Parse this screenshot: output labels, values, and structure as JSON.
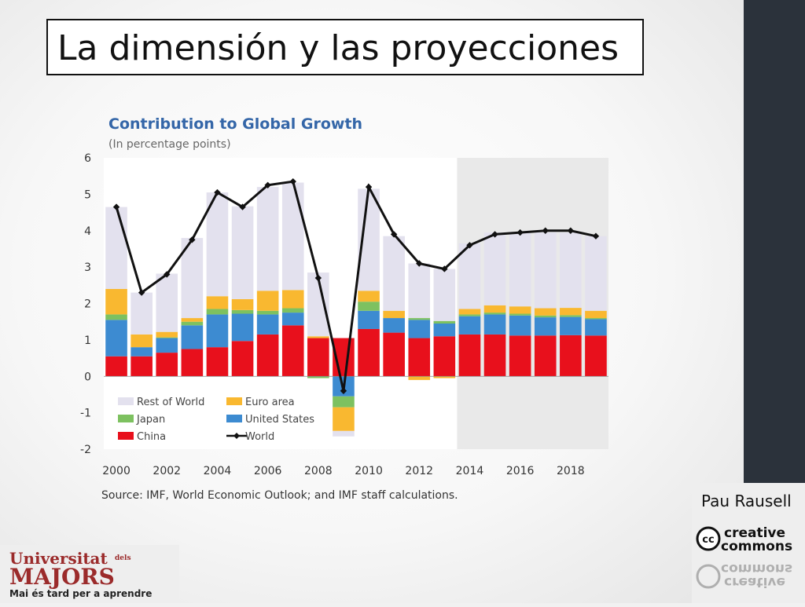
{
  "slide": {
    "title": "La dimensión y las proyecciones",
    "author": "Pau Rausell",
    "cc_logo_text": [
      "creative",
      "commons"
    ],
    "university_logo": {
      "line1": "Universitat",
      "line1_small": "dels",
      "line2": "MAJORS",
      "tagline": "Mai és tard per a aprendre"
    },
    "colors": {
      "right_band": "#2b323b",
      "brand_red": "#9b2b2b",
      "title_border": "#111111"
    }
  },
  "chart_data": {
    "type": "bar",
    "stacked": true,
    "title": "Contribution to Global Growth",
    "subtitle": "(In percentage points)",
    "source": "Source: IMF, World Economic Outlook; and IMF staff calculations.",
    "x": [
      2000,
      2001,
      2002,
      2003,
      2004,
      2005,
      2006,
      2007,
      2008,
      2009,
      2010,
      2011,
      2012,
      2013,
      2014,
      2015,
      2016,
      2017,
      2018,
      2019
    ],
    "xticks": [
      2000,
      2002,
      2004,
      2006,
      2008,
      2010,
      2012,
      2014,
      2016,
      2018
    ],
    "ylim": [
      -2,
      6
    ],
    "yticks": [
      -2,
      -1,
      0,
      1,
      2,
      3,
      4,
      5,
      6
    ],
    "projection_start": 2014,
    "legend": "bottom-left",
    "series": [
      {
        "name": "China",
        "color": "#e8101c",
        "values": [
          0.55,
          0.55,
          0.65,
          0.75,
          0.8,
          0.97,
          1.15,
          1.4,
          1.05,
          1.05,
          1.3,
          1.2,
          1.05,
          1.1,
          1.15,
          1.15,
          1.12,
          1.12,
          1.13,
          1.12
        ]
      },
      {
        "name": "United States",
        "color": "#3d8bd1",
        "values": [
          1.0,
          0.25,
          0.4,
          0.65,
          0.9,
          0.75,
          0.55,
          0.35,
          0.0,
          -0.55,
          0.5,
          0.4,
          0.5,
          0.35,
          0.5,
          0.55,
          0.55,
          0.5,
          0.5,
          0.45
        ]
      },
      {
        "name": "Japan",
        "color": "#7dc160",
        "values": [
          0.15,
          0.0,
          0.02,
          0.1,
          0.15,
          0.1,
          0.1,
          0.12,
          -0.05,
          -0.3,
          0.25,
          0.0,
          0.05,
          0.07,
          0.05,
          0.05,
          0.05,
          0.05,
          0.05,
          0.03
        ]
      },
      {
        "name": "Euro area",
        "color": "#f9b830",
        "values": [
          0.7,
          0.35,
          0.15,
          0.1,
          0.35,
          0.3,
          0.55,
          0.5,
          0.05,
          -0.65,
          0.3,
          0.2,
          -0.1,
          -0.05,
          0.15,
          0.2,
          0.2,
          0.2,
          0.2,
          0.2
        ]
      },
      {
        "name": "Rest of World",
        "color": "#e3e1ee",
        "values": [
          2.25,
          1.15,
          1.6,
          2.2,
          2.85,
          2.55,
          2.85,
          2.95,
          1.75,
          -0.15,
          2.8,
          2.05,
          1.5,
          1.43,
          1.8,
          2.0,
          2.05,
          2.08,
          2.07,
          2.05
        ]
      },
      {
        "name": "World",
        "color": "#111111",
        "type": "line",
        "values": [
          4.65,
          2.3,
          2.8,
          3.75,
          5.05,
          4.65,
          5.25,
          5.35,
          2.7,
          -0.4,
          5.2,
          3.9,
          3.1,
          2.95,
          3.6,
          3.9,
          3.95,
          4.0,
          4.0,
          3.85
        ]
      }
    ]
  }
}
